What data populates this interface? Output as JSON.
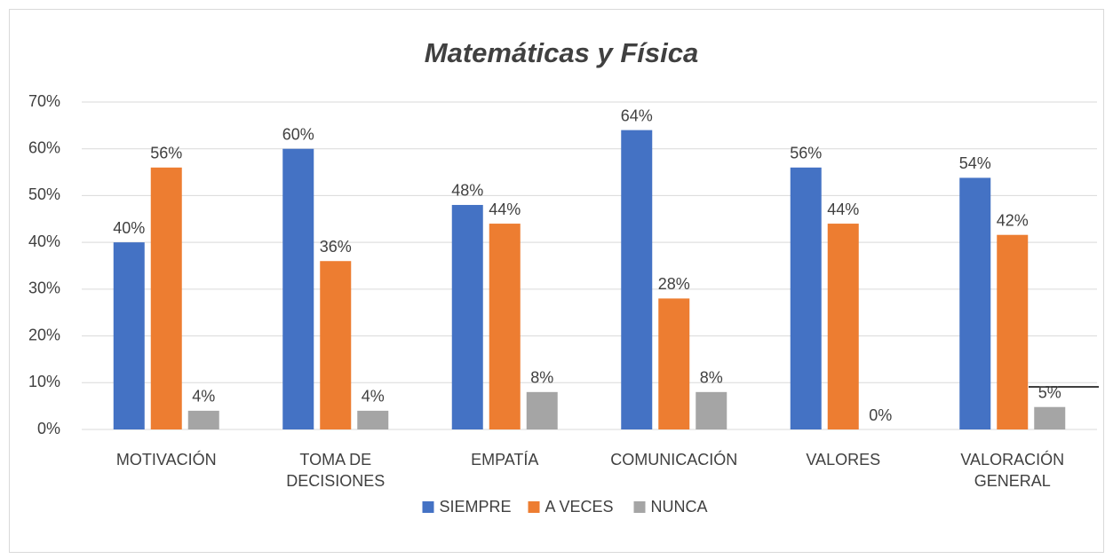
{
  "chart_data": {
    "type": "bar",
    "title": "Matemáticas y Física",
    "categories": [
      "MOTIVACIÓN",
      "TOMA DE DECISIONES",
      "EMPATÍA",
      "COMUNICACIÓN",
      "VALORES",
      "VALORACIÓN GENERAL"
    ],
    "series": [
      {
        "name": "SIEMPRE",
        "color": "#4472c4",
        "values": [
          40,
          60,
          48,
          64,
          56,
          53.8
        ],
        "value_labels": [
          "40%",
          "60%",
          "48%",
          "64%",
          "56%",
          "54%"
        ]
      },
      {
        "name": "A VECES",
        "color": "#ed7d31",
        "values": [
          56,
          36,
          44,
          28,
          44,
          41.6
        ],
        "value_labels": [
          "56%",
          "36%",
          "44%",
          "28%",
          "44%",
          "42%"
        ]
      },
      {
        "name": "NUNCA",
        "color": "#a5a5a5",
        "values": [
          4,
          4,
          8,
          8,
          0,
          4.8
        ],
        "value_labels": [
          "4%",
          "4%",
          "8%",
          "8%",
          "0%",
          "5%"
        ]
      }
    ],
    "ylim": [
      0,
      70
    ],
    "yticks": [
      {
        "value": 0,
        "label": "0%"
      },
      {
        "value": 10,
        "label": "10%"
      },
      {
        "value": 20,
        "label": "20%"
      },
      {
        "value": 30,
        "label": "30%"
      },
      {
        "value": 40,
        "label": "40%"
      },
      {
        "value": 50,
        "label": "50%"
      },
      {
        "value": 60,
        "label": "60%"
      },
      {
        "value": 70,
        "label": "70%"
      }
    ],
    "grid": true,
    "legend": "bottom"
  }
}
